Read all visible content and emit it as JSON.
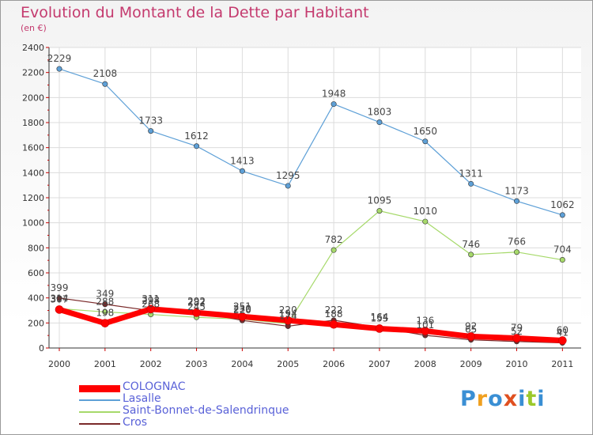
{
  "title": "Evolution du Montant de la Dette par Habitant",
  "unit": "(en €)",
  "logo": {
    "text": "Proxiti",
    "colors": [
      "#3a8fd4",
      "#f0a020",
      "#3a8fd4",
      "#e05020",
      "#3a8fd4",
      "#9bc92b",
      "#3a8fd4"
    ]
  },
  "chart_data": {
    "type": "line",
    "title": "Evolution du Montant de la Dette par Habitant",
    "subtitle": "(en €)",
    "xlabel": "",
    "ylabel": "",
    "categories": [
      "2000",
      "2001",
      "2002",
      "2003",
      "2004",
      "2005",
      "2006",
      "2007",
      "2008",
      "2009",
      "2010",
      "2011"
    ],
    "ylim": [
      0,
      2400
    ],
    "yticks": [
      0,
      200,
      400,
      600,
      800,
      1000,
      1200,
      1400,
      1600,
      1800,
      2000,
      2200,
      2400
    ],
    "grid": true,
    "legend_position": "bottom-left",
    "series": [
      {
        "name": "COLOGNAC",
        "color": "#ff0000",
        "values": [
          307,
          198,
          311,
          282,
          251,
          220,
          188,
          155,
          136,
          92,
          79,
          60
        ]
      },
      {
        "name": "Lasalle",
        "color": "#5ea0d7",
        "values": [
          2229,
          2108,
          1733,
          1612,
          1413,
          1295,
          1948,
          1803,
          1650,
          1311,
          1173,
          1062
        ]
      },
      {
        "name": "Saint-Bonnet-de-Salendrinque",
        "color": "#a6d96a",
        "values": [
          314,
          288,
          268,
          245,
          230,
          194,
          782,
          1095,
          1010,
          746,
          766,
          704
        ]
      },
      {
        "name": "Cros",
        "color": "#7a2a2a",
        "values": [
          399,
          349,
          298,
          292,
          220,
          174,
          222,
          164,
          101,
          65,
          52,
          41
        ]
      }
    ]
  }
}
